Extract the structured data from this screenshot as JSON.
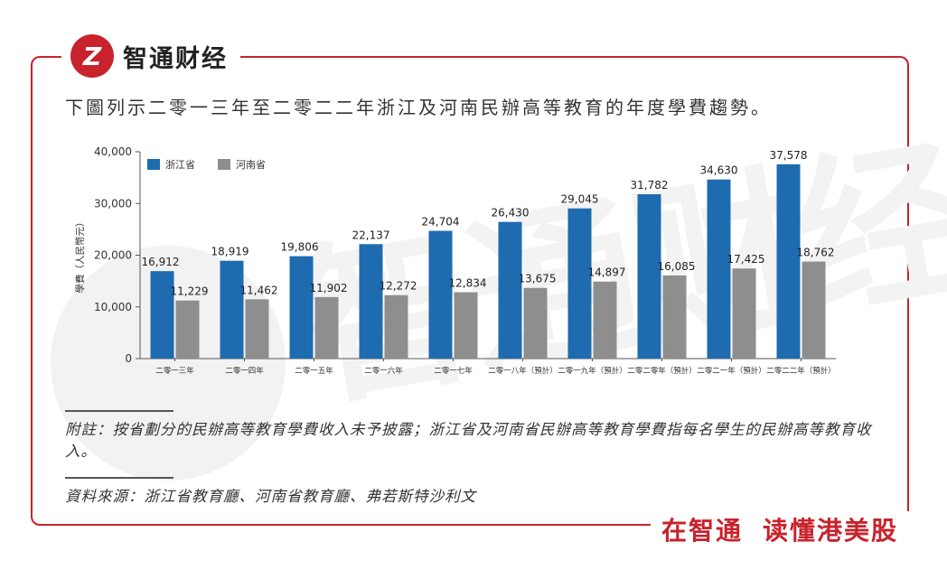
{
  "brand": {
    "name": "智通财经",
    "logo_glyph": "Z"
  },
  "slogan": {
    "part1": "在智通",
    "part2": "读懂港美股"
  },
  "intro": "下圖列示二零一三年至二零二二年浙江及河南民辦高等教育的年度學費趨勢。",
  "watermark": "智通财经",
  "colors": {
    "accent": "#c8232c",
    "series1": "#1e6bb0",
    "series2": "#8e8e8e"
  },
  "chart_data": {
    "type": "bar",
    "title": "",
    "xlabel": "",
    "ylabel": "學費（人民幣元）",
    "ylim": [
      0,
      40000
    ],
    "yticks": [
      0,
      10000,
      20000,
      30000,
      40000
    ],
    "ytick_labels": [
      "0",
      "10,000",
      "20,000",
      "30,000",
      "40,000"
    ],
    "grid": false,
    "legend_position": "top-left",
    "categories": [
      "二零一三年",
      "二零一四年",
      "二零一五年",
      "二零一六年",
      "二零一七年",
      "二零一八年（預計）",
      "二零一九年（預計）",
      "二零二零年（預計）",
      "二零二一年（預計）",
      "二零二二年（預計）"
    ],
    "series": [
      {
        "name": "浙江省",
        "color": "#1e6bb0",
        "values": [
          16912,
          18919,
          19806,
          22137,
          24704,
          26430,
          29045,
          31782,
          34630,
          37578
        ],
        "labels": [
          "16,912",
          "18,919",
          "19,806",
          "22,137",
          "24,704",
          "26,430",
          "29,045",
          "31,782",
          "34,630",
          "37,578"
        ]
      },
      {
        "name": "河南省",
        "color": "#8e8e8e",
        "values": [
          11229,
          11462,
          11902,
          12272,
          12834,
          13675,
          14897,
          16085,
          17425,
          18762
        ],
        "labels": [
          "11,229",
          "11,462",
          "11,902",
          "12,272",
          "12,834",
          "13,675",
          "14,897",
          "16,085",
          "17,425",
          "18,762"
        ]
      }
    ]
  },
  "notes": {
    "footnote": "附註：按省劃分的民辦高等教育學費收入未予披露；浙江省及河南省民辦高等教育學費指每名學生的民辦高等教育收入。",
    "source": "資料來源：浙江省教育廳、河南省教育廳、弗若斯特沙利文"
  }
}
